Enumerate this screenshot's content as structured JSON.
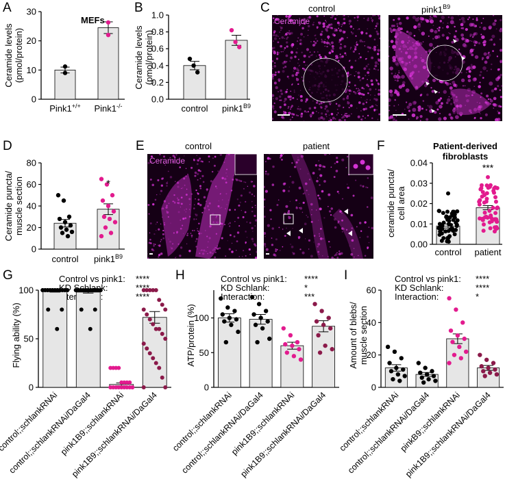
{
  "panels": {
    "A": {
      "letter": "A",
      "title": "MEFs",
      "ylabel": "Ceramide levels (pmol/protein)",
      "ylabel_lines": [
        "Ceramide levels",
        "(pmol/protein)"
      ],
      "yticks": [
        "0",
        "10",
        "20",
        "30"
      ]
    },
    "B": {
      "letter": "B",
      "ylabel_lines": [
        "Ceramide levels",
        "(pmol/protein)"
      ],
      "yticks": [
        "0.0",
        "0.2",
        "0.4",
        "0.6",
        "0.8",
        "1.0"
      ],
      "xlabels": [
        "control",
        "pink1"
      ],
      "sup": "B9"
    },
    "C": {
      "letter": "C",
      "stain": "Ceramide",
      "titles": [
        "control",
        "pink1"
      ],
      "sup": "B9"
    },
    "D": {
      "letter": "D",
      "ylabel_lines": [
        "Ceramide puncta/",
        "muscle section"
      ],
      "yticks": [
        "0",
        "20",
        "40",
        "60",
        "80"
      ],
      "xlabels": [
        "control",
        "pink1"
      ],
      "sup": "B9",
      "sig": "*"
    },
    "E": {
      "letter": "E",
      "stain": "Ceramide",
      "titles": [
        "control",
        "patient"
      ]
    },
    "F": {
      "letter": "F",
      "title_lines": [
        "Patient-derived",
        "fibroblasts"
      ],
      "ylabel_lines": [
        "ceramide puncta/",
        "cell area"
      ],
      "yticks": [
        "0.00",
        "0.01",
        "0.02",
        "0.03",
        "0.04"
      ],
      "xlabels": [
        "control",
        "patient"
      ],
      "sig": "***"
    },
    "G": {
      "letter": "G",
      "ylabel": "Flying ability (%)",
      "yticks": [
        "0",
        "50",
        "100"
      ],
      "stats": [
        [
          "Control vs pink1:",
          "****"
        ],
        [
          "KD Schlank:",
          "****"
        ],
        [
          "Interaction:",
          "****"
        ]
      ]
    },
    "H": {
      "letter": "H",
      "ylabel": "ATP/protein (%)",
      "yticks": [
        "0",
        "50",
        "100"
      ],
      "stats": [
        [
          "Control vs pink1:",
          "****"
        ],
        [
          "KD Schlank:",
          "*"
        ],
        [
          "Interaction:",
          "***"
        ]
      ]
    },
    "I": {
      "letter": "I",
      "ylabel_lines": [
        "Amount of blebs/",
        "muscle section"
      ],
      "yticks": [
        "0",
        "20",
        "40",
        "60"
      ],
      "stats": [
        [
          "Control vs pink1:",
          "****"
        ],
        [
          "KD Schlank:",
          "****"
        ],
        [
          "Interaction:",
          "*"
        ]
      ]
    }
  },
  "xlabels_G": [
    "control;;schlankRNAi",
    "control;;schlankRNAi/DaGal4",
    "pink1B9;;schlankRNAi",
    "pink1B9;;schlankRNAi/DaGal4"
  ],
  "xlabels_H": [
    "control;;schlankRNAi",
    "control;;schlankRNAi/DaGal4",
    "pink1B9;;schlankRNAi",
    "pink1B9;;schlankRNAi/DaGal4"
  ],
  "xlabels_I": [
    "control;;schlankRNAi",
    "control;;schlankRNAi/DaGal4",
    "pinkB9;;schlankRNAi",
    "pink1B9;;schlankRNAi/DaGal4"
  ],
  "colors": {
    "black": "#000000",
    "magenta": "#e21b8e",
    "darkred": "#8b1a4a",
    "bar": "#e6e6e6",
    "micro_bg": "#150015",
    "micro_fg": "#d633d6"
  },
  "chart_data": [
    {
      "panel": "A",
      "type": "bar",
      "title": "MEFs",
      "categories": [
        "Pink1+/+",
        "Pink1-/-"
      ],
      "values": [
        10.0,
        24.5
      ],
      "errors": [
        1.0,
        2.0
      ],
      "points": [
        [
          9.0,
          11.2
        ],
        [
          22.0,
          26.3
        ]
      ],
      "ylabel": "Ceramide levels (pmol/protein)",
      "ylim": [
        0,
        30
      ]
    },
    {
      "panel": "B",
      "type": "bar",
      "categories": [
        "control",
        "pink1B9"
      ],
      "values": [
        0.4,
        0.7
      ],
      "errors": [
        0.05,
        0.06
      ],
      "points": [
        [
          0.48,
          0.4,
          0.32
        ],
        [
          0.82,
          0.68,
          0.62
        ]
      ],
      "ylabel": "Ceramide levels (pmol/protein)",
      "ylim": [
        0,
        1.0
      ]
    },
    {
      "panel": "D",
      "type": "bar",
      "categories": [
        "control",
        "pink1B9"
      ],
      "values": [
        24,
        37
      ],
      "errors": [
        3.5,
        5
      ],
      "points": [
        [
          50,
          45,
          30,
          28,
          25,
          22,
          20,
          18,
          16,
          15,
          12
        ],
        [
          65,
          60,
          50,
          45,
          40,
          35,
          30,
          28,
          25,
          20,
          15,
          12
        ]
      ],
      "ylabel": "Ceramide puncta/ muscle section",
      "ylim": [
        0,
        80
      ],
      "significance": "*"
    },
    {
      "panel": "F",
      "type": "bar",
      "categories": [
        "control",
        "patient"
      ],
      "values": [
        0.009,
        0.018
      ],
      "errors": [
        0.001,
        0.001
      ],
      "ylabel": "ceramide puncta/ cell area",
      "ylim": [
        0,
        0.04
      ],
      "significance": "***"
    },
    {
      "panel": "G",
      "type": "bar",
      "categories": [
        "control;;schlankRNAi",
        "control;;schlankRNAi/DaGal4",
        "pink1B9;;schlankRNAi",
        "pink1B9;;schlankRNAi/DaGal4"
      ],
      "values": [
        99,
        98,
        3,
        72
      ],
      "errors": [
        1,
        1,
        1.5,
        6
      ],
      "ylabel": "Flying ability (%)",
      "ylim": [
        0,
        100
      ]
    },
    {
      "panel": "H",
      "type": "bar",
      "categories": [
        "control;;schlankRNAi",
        "control;;schlankRNAi/DaGal4",
        "pink1B9;;schlankRNAi",
        "pink1B9;;schlankRNAi/DaGal4"
      ],
      "values": [
        100,
        98,
        60,
        88
      ],
      "errors": [
        6,
        7,
        5,
        8
      ],
      "points": [
        [
          128,
          115,
          110,
          105,
          100,
          98,
          95,
          90,
          80,
          65
        ],
        [
          130,
          120,
          110,
          105,
          100,
          95,
          90,
          85,
          70,
          65
        ],
        [
          85,
          75,
          65,
          62,
          60,
          55,
          50,
          45,
          40
        ],
        [
          120,
          110,
          100,
          95,
          90,
          85,
          75,
          60,
          55,
          50
        ]
      ],
      "ylabel": "ATP/protein (%)",
      "ylim": [
        0,
        140
      ]
    },
    {
      "panel": "I",
      "type": "bar",
      "categories": [
        "control;;schlankRNAi",
        "control;;schlankRNAi/DaGal4",
        "pinkB9;;schlankRNAi",
        "pink1B9;;schlankRNAi/DaGal4"
      ],
      "values": [
        12,
        8,
        30,
        12
      ],
      "errors": [
        2,
        1.2,
        3,
        1.5
      ],
      "points": [
        [
          25,
          22,
          18,
          15,
          12,
          11,
          10,
          8,
          7,
          5,
          4
        ],
        [
          15,
          12,
          10,
          9,
          8,
          7,
          6,
          5,
          4,
          3
        ],
        [
          55,
          48,
          40,
          35,
          32,
          30,
          28,
          25,
          22,
          20,
          18,
          15
        ],
        [
          20,
          17,
          15,
          13,
          12,
          11,
          10,
          9,
          8,
          7
        ]
      ],
      "ylabel": "Amount of blebs/ muscle section",
      "ylim": [
        0,
        60
      ]
    }
  ]
}
